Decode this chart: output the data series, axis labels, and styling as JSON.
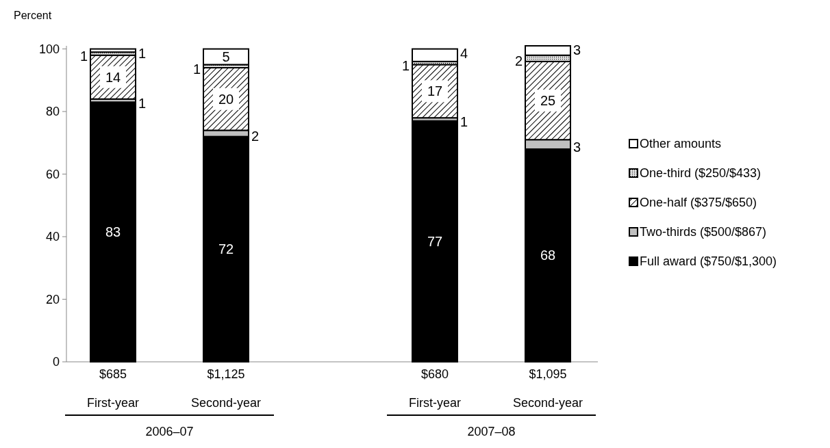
{
  "chart_data": {
    "type": "bar",
    "stacked": true,
    "ylabel": "Percent",
    "categories": [
      "$685",
      "$1,125",
      "$680",
      "$1,095"
    ],
    "series": [
      {
        "name": "Full award ($750/$1,300)",
        "color": "#000000",
        "values": [
          83,
          72,
          77,
          68
        ]
      },
      {
        "name": "Two-thirds ($500/$867)",
        "color": "#c0c0c0",
        "values": [
          1,
          2,
          1,
          3
        ]
      },
      {
        "name": "One-half ($375/$650)",
        "color": "#000000",
        "values": [
          14,
          20,
          17,
          25
        ]
      },
      {
        "name": "One-third ($250/$433)",
        "color": "#000000",
        "values": [
          1,
          1,
          1,
          2
        ]
      },
      {
        "name": "Other amounts",
        "color": "#ffffff",
        "values": [
          1,
          5,
          4,
          3
        ]
      }
    ],
    "ylim": [
      0,
      101
    ],
    "yticks": [
      0,
      20,
      40,
      60,
      80,
      100
    ],
    "data_labels": true,
    "legend": "right",
    "annotations": [
      "First-year",
      "Second-year",
      "First-year",
      "Second-year",
      "2006–07",
      "2007–08"
    ]
  }
}
